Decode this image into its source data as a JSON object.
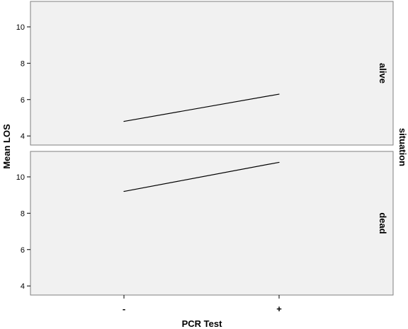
{
  "chart_data": {
    "type": "line",
    "xlabel": "PCR Test",
    "ylabel": "Mean LOS",
    "facet_label": "situation",
    "categories": [
      "-",
      "+"
    ],
    "ylim": [
      3.5,
      11.4
    ],
    "yticks": [
      4,
      6,
      8,
      10
    ],
    "panels": [
      {
        "name": "alive",
        "values": [
          4.8,
          6.3
        ]
      },
      {
        "name": "dead",
        "values": [
          9.2,
          10.8
        ]
      }
    ],
    "colors": {
      "panel_bg": "#f1f1f1",
      "frame": "#7f7f7f",
      "line": "#000000"
    }
  }
}
